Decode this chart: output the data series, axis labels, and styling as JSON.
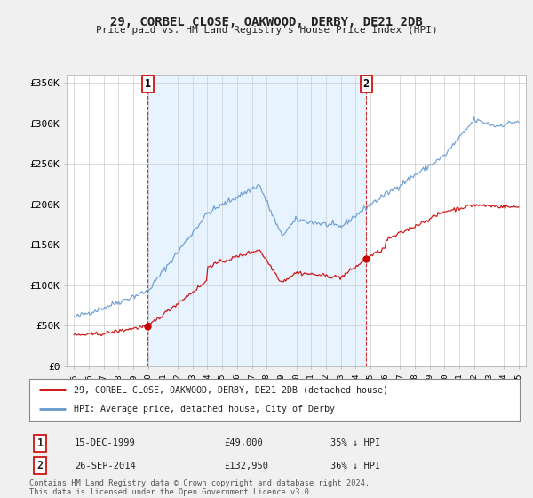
{
  "title": "29, CORBEL CLOSE, OAKWOOD, DERBY, DE21 2DB",
  "subtitle": "Price paid vs. HM Land Registry's House Price Index (HPI)",
  "sale1_date": "15-DEC-1999",
  "sale1_price": 49000,
  "sale1_label": "35% ↓ HPI",
  "sale2_date": "26-SEP-2014",
  "sale2_price": 132950,
  "sale2_label": "36% ↓ HPI",
  "legend_line1": "29, CORBEL CLOSE, OAKWOOD, DERBY, DE21 2DB (detached house)",
  "legend_line2": "HPI: Average price, detached house, City of Derby",
  "footnote": "Contains HM Land Registry data © Crown copyright and database right 2024.\nThis data is licensed under the Open Government Licence v3.0.",
  "red_color": "#cc0000",
  "blue_color": "#6699cc",
  "shade_color": "#ddeeff",
  "ylim": [
    0,
    360000
  ],
  "yticks": [
    0,
    50000,
    100000,
    150000,
    200000,
    250000,
    300000,
    350000
  ],
  "ytick_labels": [
    "£0",
    "£50K",
    "£100K",
    "£150K",
    "£200K",
    "£250K",
    "£300K",
    "£350K"
  ],
  "background_color": "#f0f0f0",
  "plot_bg_color": "#ffffff",
  "sale1_year_f": 1999.958,
  "sale2_year_f": 2014.708,
  "xlim_left": 1994.5,
  "xlim_right": 2025.5
}
